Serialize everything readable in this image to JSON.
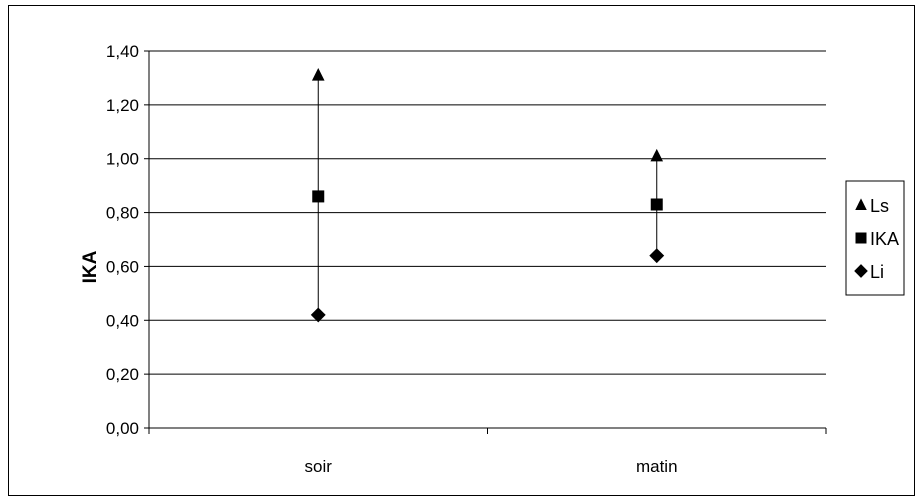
{
  "chart_data": {
    "type": "scatter",
    "categories": [
      "soir",
      "matin"
    ],
    "series": [
      {
        "name": "Ls",
        "marker": "triangle",
        "values": [
          1.31,
          1.01
        ]
      },
      {
        "name": "IKA",
        "marker": "square",
        "values": [
          0.86,
          0.83
        ]
      },
      {
        "name": "Li",
        "marker": "diamond",
        "values": [
          0.42,
          0.64
        ]
      }
    ],
    "error_bars": "vertical line from Li to Ls per category",
    "title": "",
    "xlabel": "",
    "ylabel": "IKA",
    "ylim": [
      0,
      1.4
    ],
    "y_ticks": [
      "0,00",
      "0,20",
      "0,40",
      "0,60",
      "0,80",
      "1,00",
      "1,20",
      "1,40"
    ],
    "y_tick_values": [
      0,
      0.2,
      0.4,
      0.6,
      0.8,
      1.0,
      1.2,
      1.4
    ],
    "grid": true,
    "legend_position": "right",
    "colors": {
      "marker": "#000000",
      "grid": "#000000",
      "background": "#ffffff"
    }
  }
}
